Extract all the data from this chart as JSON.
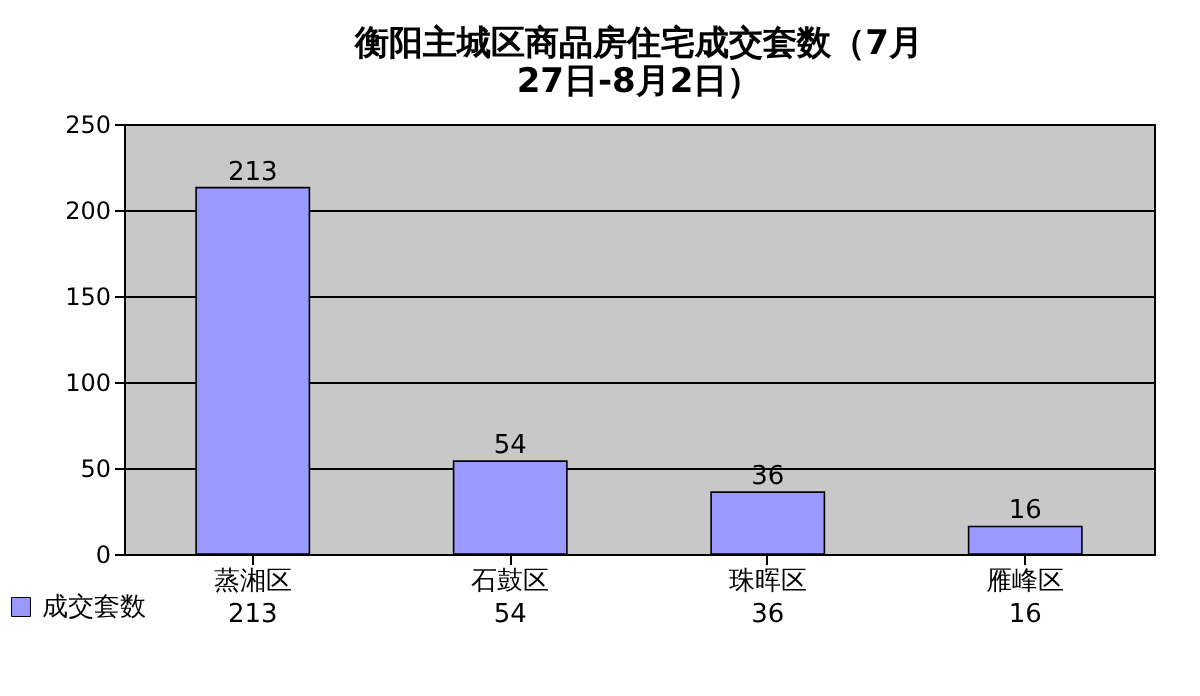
{
  "chart_data": {
    "type": "bar",
    "title": "衡阳主城区商品房住宅成交套数（7月27日-8月2日）",
    "categories": [
      "蒸湘区",
      "石鼓区",
      "珠晖区",
      "雁峰区"
    ],
    "series": [
      {
        "name": "成交套数",
        "color": "#9999ff",
        "values": [
          213,
          54,
          36,
          16
        ]
      }
    ],
    "annotations": [
      "213",
      "54",
      "36",
      "16"
    ],
    "ylim": [
      0,
      250
    ],
    "yticks": [
      0,
      50,
      100,
      150,
      200,
      250
    ],
    "grid": "y",
    "data_labels": true,
    "legend": "bottom"
  }
}
